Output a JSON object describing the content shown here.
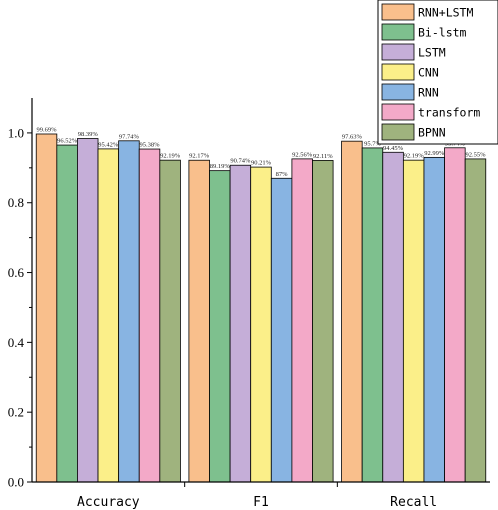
{
  "chart_data": {
    "type": "bar",
    "categories": [
      "Accuracy",
      "F1",
      "Recall"
    ],
    "series": [
      {
        "name": "RNN+LSTM",
        "color": "#f9bf8c",
        "values": [
          0.9969,
          0.9217,
          0.9763
        ],
        "labels": [
          "99.69%",
          "92.17%",
          "97.63%"
        ]
      },
      {
        "name": "Bi-lstm",
        "color": "#7ec08e",
        "values": [
          0.9652,
          0.8919,
          0.957
        ],
        "labels": [
          "96.52%",
          "89.19%",
          "95.7%"
        ]
      },
      {
        "name": "LSTM",
        "color": "#c5aed8",
        "values": [
          0.9839,
          0.9074,
          0.9445
        ],
        "labels": [
          "98.39%",
          "90.74%",
          "94.45%"
        ]
      },
      {
        "name": "CNN",
        "color": "#fbef89",
        "values": [
          0.9542,
          0.9021,
          0.9219
        ],
        "labels": [
          "95.42%",
          "90.21%",
          "92.19%"
        ]
      },
      {
        "name": "RNN",
        "color": "#88b4e2",
        "values": [
          0.9774,
          0.87,
          0.9299
        ],
        "labels": [
          "97.74%",
          "87%",
          "92.99%"
        ]
      },
      {
        "name": "transform",
        "color": "#f3a9c8",
        "values": [
          0.9538,
          0.9256,
          0.9574
        ],
        "labels": [
          "95.38%",
          "92.56%",
          "95.74%"
        ]
      },
      {
        "name": "BPNN",
        "color": "#9fb37e",
        "values": [
          0.9219,
          0.9211,
          0.9255
        ],
        "labels": [
          "92.19%",
          "92.11%",
          "92.55%"
        ]
      }
    ],
    "ylim": [
      0,
      1.1
    ],
    "yticks": [
      "0.0",
      "0.2",
      "0.4",
      "0.6",
      "0.8",
      "1.0"
    ],
    "ytick_values": [
      0,
      0.2,
      0.4,
      0.6,
      0.8,
      1.0
    ],
    "legend_position": "top-right",
    "grid": false,
    "xlabel": "",
    "ylabel": ""
  }
}
